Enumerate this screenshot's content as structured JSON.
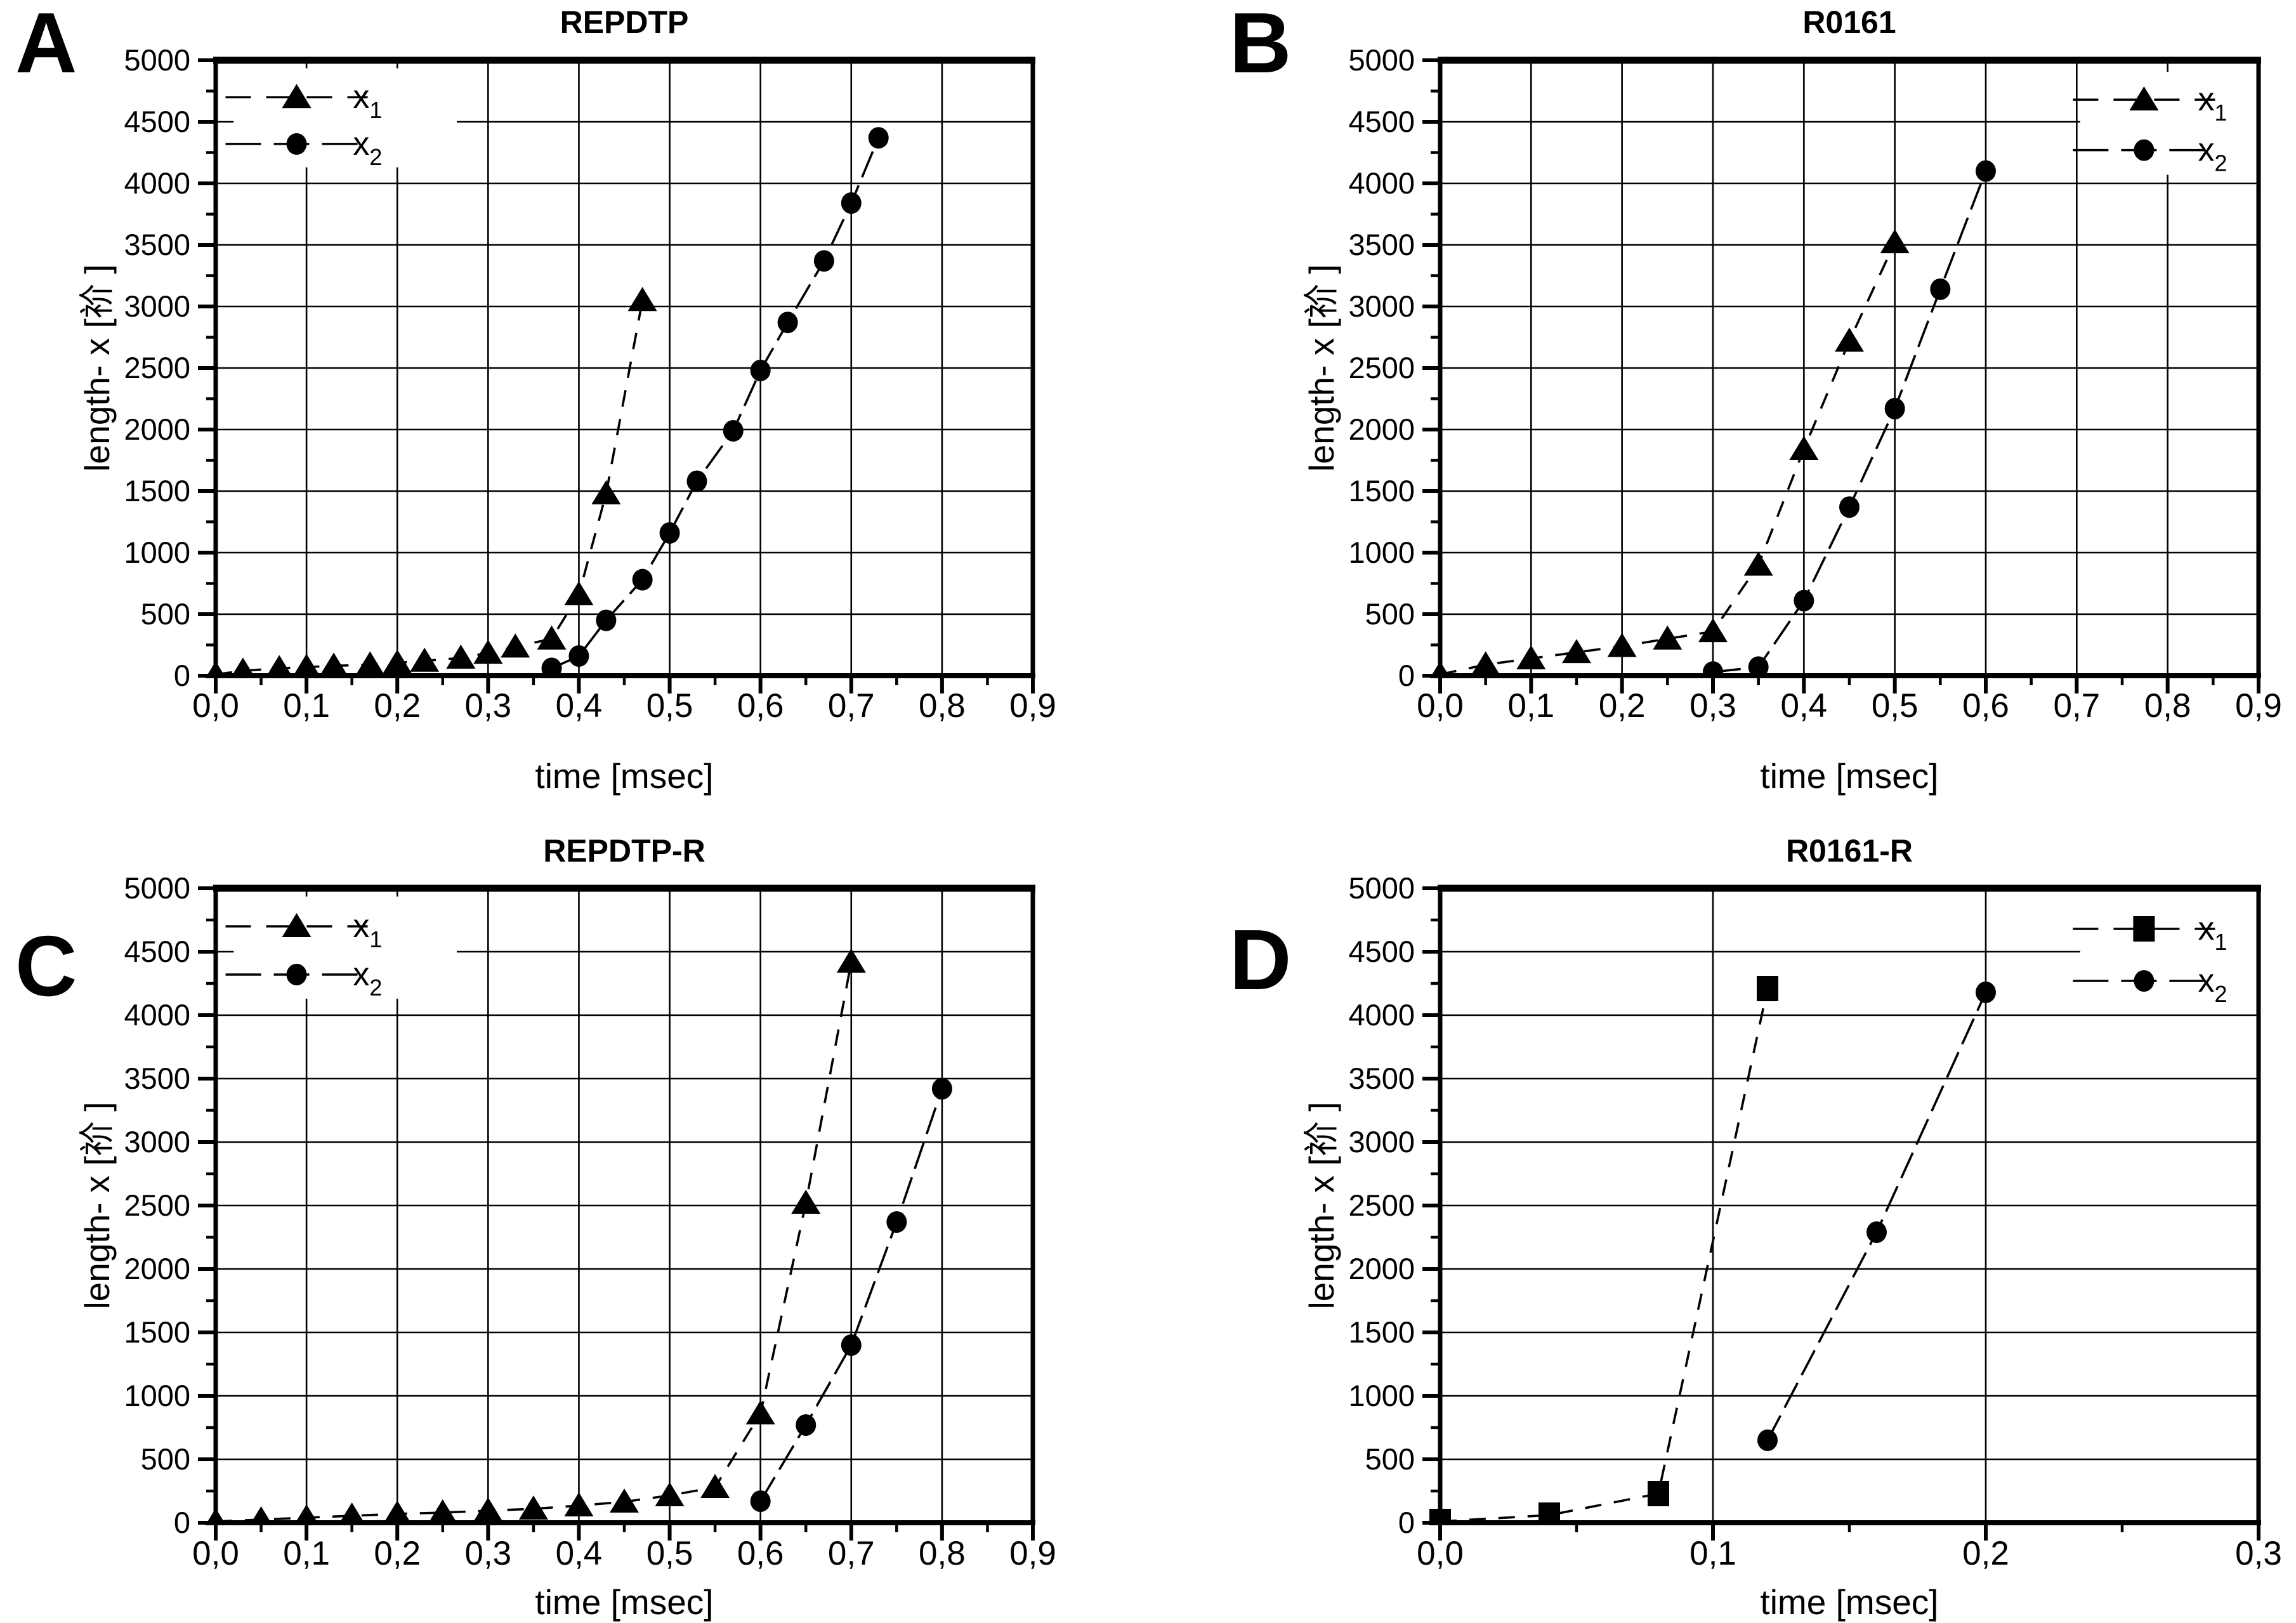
{
  "figure": {
    "background": "#ffffff",
    "ink_color": "#000000",
    "panel_letters": [
      "A",
      "B",
      "C",
      "D"
    ]
  },
  "chart_data": [
    {
      "corner_letter": "A",
      "type": "line",
      "title": "REPDTP",
      "xlabel": "time [msec]",
      "ylabel": "length- x [祄 ]",
      "xlim": [
        0,
        0.9
      ],
      "ylim": [
        0,
        5000
      ],
      "x_major_step": 0.1,
      "x_minor_step": 0.05,
      "y_major_step": 500,
      "y_minor_step": 250,
      "grid": true,
      "legend_position": "top-left",
      "x_tick_labels": [
        "0,0",
        "0,1",
        "0,2",
        "0,3",
        "0,4",
        "0,5",
        "0,6",
        "0,7",
        "0,8",
        "0,9"
      ],
      "y_tick_labels": [
        "0",
        "500",
        "1000",
        "1500",
        "2000",
        "2500",
        "3000",
        "3500",
        "4000",
        "4500",
        "5000"
      ],
      "series": [
        {
          "name": "x",
          "sub": "1",
          "marker": "triangle",
          "x": [
            0.0,
            0.03,
            0.07,
            0.1,
            0.13,
            0.17,
            0.2,
            0.23,
            0.27,
            0.3,
            0.33,
            0.37,
            0.4,
            0.43,
            0.47
          ],
          "y": [
            10,
            40,
            60,
            70,
            80,
            90,
            105,
            120,
            145,
            185,
            235,
            300,
            660,
            1480,
            3050
          ]
        },
        {
          "name": "x",
          "sub": "2",
          "marker": "circle",
          "x": [
            0.37,
            0.4,
            0.43,
            0.47,
            0.5,
            0.53,
            0.57,
            0.6,
            0.63,
            0.67,
            0.7,
            0.73
          ],
          "y": [
            60,
            160,
            450,
            780,
            1160,
            1580,
            1990,
            2480,
            2870,
            3370,
            3840,
            4370
          ]
        }
      ]
    },
    {
      "corner_letter": "B",
      "type": "line",
      "title": "R0161",
      "xlabel": "time [msec]",
      "ylabel": "length- x [祄 ]",
      "xlim": [
        0,
        0.9
      ],
      "ylim": [
        0,
        5000
      ],
      "x_major_step": 0.1,
      "x_minor_step": 0.05,
      "y_major_step": 500,
      "y_minor_step": 250,
      "grid": true,
      "legend_position": "top-right",
      "x_tick_labels": [
        "0,0",
        "0,1",
        "0,2",
        "0,3",
        "0,4",
        "0,5",
        "0,6",
        "0,7",
        "0,8",
        "0,9"
      ],
      "y_tick_labels": [
        "0",
        "500",
        "1000",
        "1500",
        "2000",
        "2500",
        "3000",
        "3500",
        "4000",
        "4500",
        "5000"
      ],
      "series": [
        {
          "name": "x",
          "sub": "1",
          "marker": "triangle",
          "x": [
            0.0,
            0.05,
            0.1,
            0.15,
            0.2,
            0.25,
            0.3,
            0.35,
            0.4,
            0.45,
            0.5
          ],
          "y": [
            10,
            90,
            140,
            190,
            240,
            300,
            360,
            900,
            1840,
            2720,
            3520
          ]
        },
        {
          "name": "x",
          "sub": "2",
          "marker": "circle",
          "x": [
            0.3,
            0.35,
            0.4,
            0.45,
            0.5,
            0.55,
            0.6
          ],
          "y": [
            30,
            70,
            610,
            1370,
            2170,
            3140,
            4100
          ]
        }
      ]
    },
    {
      "corner_letter": "C",
      "type": "line",
      "title": "REPDTP-R",
      "xlabel": "time [msec]",
      "ylabel": "length- x [祄 ]",
      "xlim": [
        0,
        0.9
      ],
      "ylim": [
        0,
        5000
      ],
      "x_major_step": 0.1,
      "x_minor_step": 0.05,
      "y_major_step": 500,
      "y_minor_step": 250,
      "grid": true,
      "legend_position": "top-left",
      "x_tick_labels": [
        "0,0",
        "0,1",
        "0,2",
        "0,3",
        "0,4",
        "0,5",
        "0,6",
        "0,7",
        "0,8",
        "0,9"
      ],
      "y_tick_labels": [
        "0",
        "500",
        "1000",
        "1500",
        "2000",
        "2500",
        "3000",
        "3500",
        "4000",
        "4500",
        "5000"
      ],
      "series": [
        {
          "name": "x",
          "sub": "1",
          "marker": "triangle",
          "x": [
            0.0,
            0.05,
            0.1,
            0.15,
            0.2,
            0.25,
            0.3,
            0.35,
            0.4,
            0.45,
            0.5,
            0.55,
            0.6,
            0.65,
            0.7
          ],
          "y": [
            10,
            25,
            40,
            55,
            70,
            80,
            95,
            110,
            135,
            165,
            215,
            280,
            860,
            2520,
            4420
          ]
        },
        {
          "name": "x",
          "sub": "2",
          "marker": "circle",
          "x": [
            0.6,
            0.65,
            0.7,
            0.75,
            0.8
          ],
          "y": [
            170,
            770,
            1400,
            2370,
            3420
          ]
        }
      ]
    },
    {
      "corner_letter": "D",
      "type": "line",
      "title": "R0161-R",
      "xlabel": "time [msec]",
      "ylabel": "length- x [祄 ]",
      "xlim": [
        0,
        0.3
      ],
      "ylim": [
        0,
        5000
      ],
      "x_major_step": 0.1,
      "x_minor_step": 0.05,
      "y_major_step": 500,
      "y_minor_step": 250,
      "grid": true,
      "legend_position": "top-right",
      "x_tick_labels": [
        "0,0",
        "0,1",
        "0,2",
        "0,3"
      ],
      "y_tick_labels": [
        "0",
        "500",
        "1000",
        "1500",
        "2000",
        "2500",
        "3000",
        "3500",
        "4000",
        "4500",
        "5000"
      ],
      "series": [
        {
          "name": "x",
          "sub": "1",
          "marker": "square",
          "x": [
            0.0,
            0.04,
            0.08,
            0.12
          ],
          "y": [
            10,
            60,
            230,
            4210
          ]
        },
        {
          "name": "x",
          "sub": "2",
          "marker": "circle",
          "x": [
            0.12,
            0.16,
            0.2
          ],
          "y": [
            650,
            2290,
            4180
          ]
        }
      ]
    }
  ]
}
